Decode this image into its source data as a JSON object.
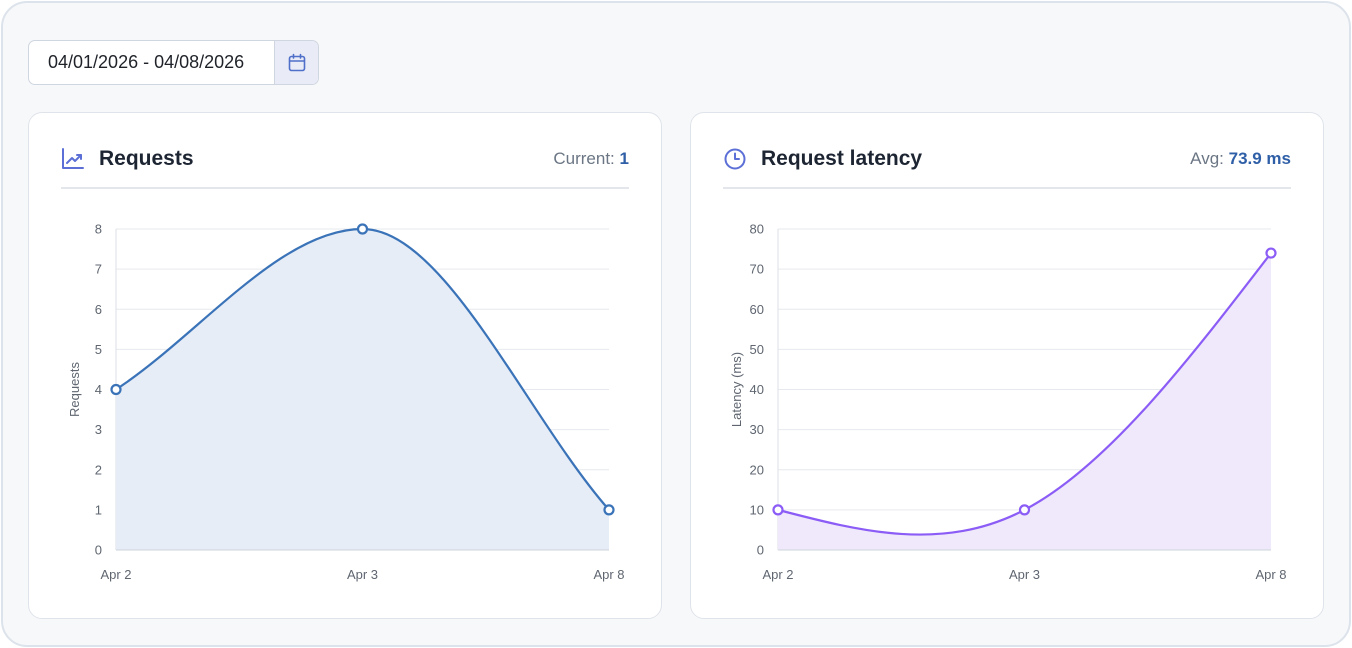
{
  "date_filter": {
    "value": "04/01/2026 - 04/08/2026",
    "button_icon": "calendar-icon"
  },
  "requests_card": {
    "title": "Requests",
    "icon": "chart-line-icon",
    "stat_label": "Current:",
    "stat_value": "1",
    "color": "#3a73b8",
    "fill": "#e6edf7"
  },
  "latency_card": {
    "title": "Request latency",
    "icon": "clock-icon",
    "stat_label": "Avg:",
    "stat_value": "73.9 ms",
    "color": "#8b5cf6",
    "fill": "#efe9fb"
  },
  "chart_data": [
    {
      "type": "area",
      "x": [
        "Apr 2",
        "Apr 3",
        "Apr 8"
      ],
      "series": [
        {
          "values": [
            4,
            8,
            1
          ]
        }
      ],
      "ylabel": "Requests",
      "ylim": [
        0,
        8
      ],
      "yticks": [
        0,
        1,
        2,
        3,
        4,
        5,
        6,
        7,
        8
      ],
      "grid": true
    },
    {
      "type": "area",
      "x": [
        "Apr 2",
        "Apr 3",
        "Apr 8"
      ],
      "series": [
        {
          "values": [
            10,
            10,
            74
          ]
        }
      ],
      "ylabel": "Latency (ms)",
      "ylim": [
        0,
        80
      ],
      "yticks": [
        0,
        10,
        20,
        30,
        40,
        50,
        60,
        70,
        80
      ],
      "grid": true
    }
  ]
}
